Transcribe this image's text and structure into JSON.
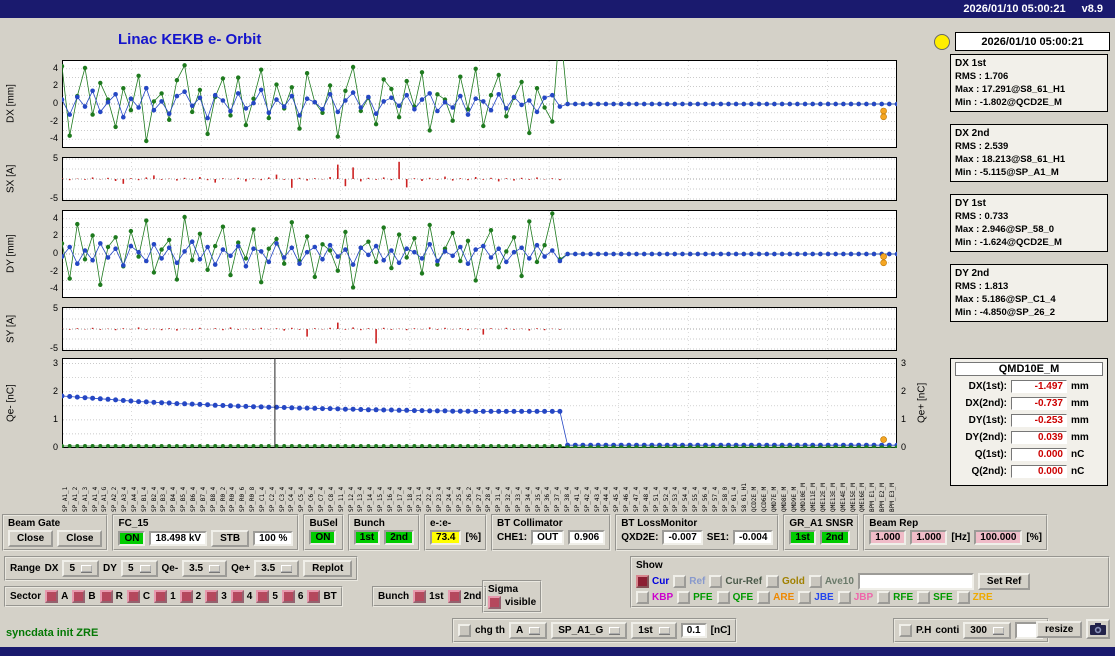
{
  "titlebar": {
    "datetime": "2026/01/10 05:00:21",
    "version": "v8.9"
  },
  "title": "Linac KEKB e- Orbit",
  "status_panel": {
    "timestamp": "2026/01/10 05:00:21",
    "stats": [
      {
        "name": "DX 1st",
        "lines": [
          "RMS : 1.706",
          "Max : 17.291@S8_61_H1",
          "Min : -1.802@QCD2E_M"
        ]
      },
      {
        "name": "DX 2nd",
        "lines": [
          "RMS : 2.539",
          "Max : 18.213@S8_61_H1",
          "Min : -5.115@SP_A1_M"
        ]
      },
      {
        "name": "DY 1st",
        "lines": [
          "RMS : 0.733",
          "Max : 2.946@SP_58_0",
          "Min : -1.624@QCD2E_M"
        ]
      },
      {
        "name": "DY 2nd",
        "lines": [
          "RMS : 1.813",
          "Max : 5.186@SP_C1_4",
          "Min : -4.850@SP_26_2"
        ]
      }
    ],
    "monitor": {
      "name": "QMD10E_M",
      "rows": [
        {
          "label": "DX(1st):",
          "value": "-1.497",
          "unit": "mm"
        },
        {
          "label": "DX(2nd):",
          "value": "-0.737",
          "unit": "mm"
        },
        {
          "label": "DY(1st):",
          "value": "-0.253",
          "unit": "mm"
        },
        {
          "label": "DY(2nd):",
          "value": "0.039",
          "unit": "mm"
        },
        {
          "label": "Q(1st):",
          "value": "0.000",
          "unit": "nC"
        },
        {
          "label": "Q(2nd):",
          "value": "0.000",
          "unit": "nC"
        }
      ]
    }
  },
  "chart_data": [
    {
      "id": "dx",
      "type": "scatter",
      "ylabel": "DX [mm]",
      "ylim": [
        -5,
        5
      ],
      "yticks": [
        4,
        2,
        0,
        -2,
        -4
      ],
      "ygrid": [
        4,
        3,
        2,
        1,
        0,
        -1,
        -2,
        -3,
        -4
      ],
      "series": [
        {
          "name": "DX 2nd",
          "color": "#1e7a1e",
          "r": 2.2,
          "values": [
            4.3,
            -3.6,
            0.9,
            4.1,
            -1.2,
            2.4,
            0.5,
            -2.6,
            1.8,
            -0.7,
            3.2,
            -4.2,
            0.3,
            1.2,
            -1.8,
            2.7,
            4.4,
            -0.9,
            1.6,
            -3.4,
            0.8,
            2.9,
            -1.3,
            3.0,
            -2.4,
            0.6,
            3.9,
            -1.6,
            2.2,
            -0.5,
            1.9,
            -2.8,
            3.5,
            0.2,
            -1.0,
            2.1,
            -3.7,
            1.5,
            4.2,
            -0.8,
            0.7,
            -2.3,
            2.8,
            1.7,
            -1.5,
            2.6,
            -0.3,
            3.6,
            -3.0,
            1.1,
            0.5,
            -1.9,
            3.1,
            -0.6,
            4.0,
            -2.5,
            1.0,
            3.3,
            -1.4,
            0.7,
            2.5,
            -3.3,
            1.8,
            -0.4,
            -2.0,
            9.0
          ],
          "runs": [
            [
              44,
              0
            ]
          ]
        },
        {
          "name": "DX 1st",
          "color": "#2547c4",
          "r": 2.3,
          "values": [
            0.5,
            -1.2,
            0.8,
            -0.3,
            1.5,
            -0.9,
            0.2,
            1.1,
            -1.5,
            0.6,
            -0.4,
            1.8,
            -0.7,
            0.3,
            -1.1,
            0.9,
            1.4,
            -0.2,
            0.7,
            -1.6,
            1.0,
            0.4,
            -0.8,
            1.2,
            -0.5,
            0.1,
            1.6,
            -1.0,
            0.5,
            -0.3,
            0.9,
            -1.3,
            0.6,
            0.2,
            -0.6,
            1.1,
            -0.9,
            0.4,
            1.3,
            -0.4,
            0.8,
            -1.1,
            0.3,
            0.7,
            -0.2,
            1.0,
            -0.6,
            0.5,
            1.2,
            -0.8,
            0.2,
            -0.4,
            0.9,
            -1.2,
            0.6,
            0.3,
            -0.7,
            1.1,
            -0.5,
            0.8,
            -0.1,
            0.4,
            -0.9,
            0.7,
            1.0,
            -0.3
          ],
          "runs": [
            [
              44,
              0
            ]
          ]
        }
      ],
      "highlights": [
        [
          0.984,
          -0.8
        ],
        [
          0.984,
          -1.45
        ]
      ],
      "highlight_color": "#f5a623"
    },
    {
      "id": "sx",
      "type": "bar",
      "ylabel": "SX [A]",
      "ylim": [
        -5.5,
        5.5
      ],
      "yticks": [
        5,
        -5
      ],
      "ygrid": [
        5,
        2.5,
        0,
        -2.5,
        -5
      ],
      "color": "#cc2222",
      "values": [
        0.2,
        -0.3,
        0.1,
        -0.2,
        0.4,
        -0.1,
        0.3,
        -0.5,
        -1.2,
        0.2,
        -0.3,
        0.4,
        0.9,
        -0.2,
        0.1,
        -0.4,
        0.3,
        -0.2,
        0.5,
        -0.3,
        -0.9,
        0.2,
        -0.1,
        0.3,
        -0.6,
        0.2,
        -0.3,
        0.4,
        1.1,
        -0.2,
        -2.2,
        0.3,
        -0.4,
        0.2,
        -0.1,
        0.5,
        3.6,
        -1.8,
        2.9,
        -0.6,
        0.3,
        -0.2,
        0.4,
        -0.3,
        4.3,
        -2.1,
        0.2,
        -0.5,
        0.3,
        -0.2,
        0.6,
        -0.4,
        0.2,
        -0.3,
        0.5,
        -0.2,
        0.3,
        -0.6,
        0.2,
        -0.4,
        0.3,
        -0.2,
        0.4,
        -0.1,
        0.2,
        -0.3
      ],
      "runs": [
        [
          44,
          0
        ]
      ]
    },
    {
      "id": "dy",
      "type": "scatter",
      "ylabel": "DY [mm]",
      "ylim": [
        -5,
        5
      ],
      "yticks": [
        4,
        2,
        0,
        -2,
        -4
      ],
      "ygrid": [
        4,
        3,
        2,
        1,
        0,
        -1,
        -2,
        -3,
        -4
      ],
      "series": [
        {
          "name": "DY 2nd",
          "color": "#1e7a1e",
          "r": 2.2,
          "values": [
            1.2,
            -2.8,
            3.4,
            -0.6,
            2.1,
            -3.5,
            0.8,
            1.9,
            -1.4,
            2.6,
            -0.3,
            3.8,
            -2.1,
            0.5,
            1.6,
            -2.9,
            4.2,
            -0.7,
            2.3,
            -1.8,
            0.9,
            3.1,
            -2.4,
            1.3,
            -0.5,
            2.8,
            -3.2,
            0.6,
            1.7,
            -1.1,
            3.6,
            -0.8,
            2.0,
            -2.6,
            1.1,
            0.4,
            -1.9,
            2.5,
            -3.8,
            0.7,
            1.4,
            -0.9,
            3.0,
            -1.6,
            2.2,
            -0.4,
            1.8,
            -2.2,
            3.3,
            -1.2,
            0.6,
            2.4,
            -0.8,
            1.5,
            -3.0,
            0.9,
            2.7,
            -1.5,
            0.3,
            1.9,
            -2.5,
            3.7,
            -0.9,
            1.0,
            4.6,
            -0.6
          ],
          "runs": [
            [
              44,
              0
            ]
          ]
        },
        {
          "name": "DY 1st",
          "color": "#2547c4",
          "r": 2.3,
          "values": [
            -0.3,
            0.8,
            -1.1,
            0.4,
            -0.7,
            1.2,
            -0.4,
            0.6,
            -1.3,
            0.9,
            0.2,
            -0.8,
            1.1,
            -0.5,
            0.7,
            -1.0,
            0.3,
            1.4,
            -0.6,
            0.8,
            -1.2,
            0.5,
            -0.2,
            0.9,
            -1.4,
            0.6,
            0.3,
            -0.9,
            1.2,
            -0.4,
            0.7,
            -1.1,
            0.2,
            0.8,
            -0.6,
            1.0,
            -0.3,
            0.5,
            -1.2,
            0.7,
            -0.1,
            0.9,
            -0.7,
            0.4,
            -1.0,
            0.6,
            0.2,
            -0.5,
            1.1,
            -0.8,
            0.3,
            -0.2,
            0.8,
            -1.1,
            0.5,
            0.9,
            -0.4,
            0.6,
            -0.9,
            0.2,
            0.7,
            -0.5,
            1.0,
            -0.3,
            0.4,
            -0.8
          ],
          "runs": [
            [
              44,
              0
            ]
          ]
        }
      ],
      "highlights": [
        [
          0.984,
          -0.3
        ],
        [
          0.984,
          -1.0
        ]
      ],
      "highlight_color": "#f5a623"
    },
    {
      "id": "sy",
      "type": "bar",
      "ylabel": "SY [A]",
      "ylim": [
        -5.5,
        5.5
      ],
      "yticks": [
        5,
        -5
      ],
      "ygrid": [
        5,
        2.5,
        0,
        -2.5,
        -5
      ],
      "color": "#cc2222",
      "values": [
        0.1,
        -0.2,
        0.2,
        -0.1,
        0.3,
        -0.2,
        0.1,
        -0.3,
        0.2,
        -0.1,
        0.4,
        -0.2,
        0.1,
        -0.3,
        0.2,
        -0.4,
        0.1,
        -0.2,
        0.3,
        -0.1,
        0.2,
        -0.3,
        0.4,
        -0.2,
        0.1,
        -0.2,
        0.3,
        -0.1,
        0.2,
        -0.4,
        0.3,
        -0.2,
        -1.9,
        0.2,
        -0.1,
        0.3,
        1.6,
        -0.2,
        0.4,
        -0.3,
        0.2,
        -3.6,
        0.3,
        -0.2,
        0.1,
        -0.3,
        0.2,
        -0.1,
        0.4,
        -0.2,
        0.3,
        -0.1,
        0.2,
        -0.3,
        0.1,
        -1.4,
        0.2,
        -0.1,
        0.3,
        -0.2,
        0.1,
        -0.4,
        0.2,
        -0.3,
        0.1,
        -0.2
      ],
      "runs": [
        [
          44,
          0
        ]
      ]
    },
    {
      "id": "q",
      "type": "scatter",
      "ylabel": "Qe- [nC]",
      "ylabel_right": "Qe+ [nC]",
      "ylim": [
        0,
        3.2
      ],
      "yticks": [
        3,
        2,
        1,
        0
      ],
      "yticks_right": [
        3,
        2,
        1,
        0
      ],
      "ygrid": [
        3,
        2.5,
        2,
        1.5,
        1,
        0.5
      ],
      "vline": 0.255,
      "series": [
        {
          "name": "Qe- 1st",
          "color": "#2547c4",
          "r": 2.5,
          "values": [
            1.85,
            1.83,
            1.81,
            1.79,
            1.77,
            1.75,
            1.73,
            1.71,
            1.69,
            1.67,
            1.65,
            1.64,
            1.62,
            1.61,
            1.6,
            1.58,
            1.57,
            1.56,
            1.55,
            1.54,
            1.52,
            1.51,
            1.5,
            1.49,
            1.48,
            1.47,
            1.46,
            1.45,
            1.45,
            1.44,
            1.43,
            1.42,
            1.42,
            1.41,
            1.4,
            1.4,
            1.39,
            1.38,
            1.38,
            1.37,
            1.36,
            1.36,
            1.35,
            1.35,
            1.34,
            1.34,
            1.33,
            1.33,
            1.32,
            1.32,
            1.32,
            1.31,
            1.31,
            1.31,
            1.3,
            1.3,
            1.3,
            1.3,
            1.3,
            1.3,
            1.3,
            1.3,
            1.3,
            1.3,
            1.3,
            1.3
          ],
          "runs": [
            [
              44,
              0.1
            ]
          ]
        },
        {
          "name": "Qe- 2nd",
          "color": "#1e7a1e",
          "r": 2.0,
          "values": [],
          "runs": [
            [
              66,
              0.07
            ],
            [
              44,
              0.03
            ]
          ]
        }
      ],
      "highlights": [
        [
          0.984,
          0.3
        ]
      ],
      "highlight_color": "#f5a623"
    }
  ],
  "xlabels": [
    "SP_A1_1",
    "SP_A1_2",
    "SP_A1_3",
    "SP_A1_4",
    "SP_A1_G",
    "SP_A2_2",
    "SP_A3_4",
    "SP_A4_4",
    "SP_B1_4",
    "SP_B2_4",
    "SP_B3_4",
    "SP_B4_4",
    "SP_B5_4",
    "SP_B6_4",
    "SP_B7_4",
    "SP_B8_4",
    "SP_R0_2",
    "SP_R0_4",
    "SP_R0_6",
    "SP_R0_8",
    "SP_C1_4",
    "SP_C2_4",
    "SP_C3_4",
    "SP_C4_4",
    "SP_C5_4",
    "SP_C6_4",
    "SP_C7_4",
    "SP_C8_4",
    "SP_11_4",
    "SP_12_4",
    "SP_13_4",
    "SP_14_4",
    "SP_15_4",
    "SP_16_4",
    "SP_17_4",
    "SP_18_4",
    "SP_21_4",
    "SP_22_4",
    "SP_23_4",
    "SP_24_4",
    "SP_25_4",
    "SP_26_2",
    "SP_27_4",
    "SP_28_4",
    "SP_31_4",
    "SP_32_4",
    "SP_33_4",
    "SP_34_4",
    "SP_35_4",
    "SP_36_4",
    "SP_37_4",
    "SP_38_4",
    "SP_41_4",
    "SP_42_4",
    "SP_43_4",
    "SP_44_4",
    "SP_45_4",
    "SP_46_4",
    "SP_47_4",
    "SP_48_4",
    "SP_51_4",
    "SP_52_4",
    "SP_53_4",
    "SP_54_4",
    "SP_55_4",
    "SP_56_4",
    "SP_57_4",
    "SP_58_0",
    "SP_61_4",
    "S8_61_H1",
    "QCD2E_M",
    "QCD6E_M",
    "QMD7E_M",
    "QMD8E_M",
    "QMD9E_M",
    "QMD10E_M",
    "QME11E_M",
    "QME12E_M",
    "QME13E_M",
    "QME14E_M",
    "QME15E_M",
    "QME16E_M",
    "BPM_E1_M",
    "BPM_E2_M",
    "BPM_E3_M"
  ],
  "controls": {
    "row1": {
      "beam_gate": {
        "title": "Beam Gate",
        "buttons": [
          "Close",
          "Close"
        ]
      },
      "fc15": {
        "title": "FC_15",
        "state": "ON",
        "kv": "18.498 kV",
        "stb": "STB",
        "pct": "100 %"
      },
      "busel": {
        "title": "BuSel",
        "state": "ON"
      },
      "bunch": {
        "title": "Bunch",
        "b1": "1st",
        "b2": "2nd"
      },
      "ee": {
        "title": "e-:e-",
        "value": "73.4",
        "unit": "[%]"
      },
      "bt_collimator": {
        "title": "BT Collimator",
        "che1_label": "CHE1:",
        "che1": "OUT",
        "value": "0.906"
      },
      "bt_lossmonitor": {
        "title": "BT LossMonitor",
        "qxd2e_label": "QXD2E:",
        "qxd2e": "-0.007",
        "se1_label": "SE1:",
        "se1": "-0.004"
      },
      "gr_a1": {
        "title": "GR_A1 SNSR",
        "b1": "1st",
        "b2": "2nd"
      },
      "beam_rep": {
        "title": "Beam Rep",
        "v1": "1.000",
        "v2": "1.000",
        "hz": "[Hz]",
        "v3": "100.000",
        "pct": "[%]"
      }
    },
    "range": {
      "title": "Range",
      "items": [
        {
          "label": "DX",
          "value": "5"
        },
        {
          "label": "DY",
          "value": "5"
        },
        {
          "label": "Qe-",
          "value": "3.5"
        },
        {
          "label": "Qe+",
          "value": "3.5"
        }
      ],
      "replot": "Replot"
    },
    "sector": {
      "title": "Sector",
      "items": [
        "A",
        "B",
        "R",
        "C",
        "1",
        "2",
        "3",
        "4",
        "5",
        "6",
        "BT"
      ]
    },
    "bunch_sel": {
      "title": "Bunch",
      "items": [
        "1st",
        "2nd"
      ]
    },
    "sigma": {
      "title": "Sigma",
      "item": "visible"
    },
    "show": {
      "title": "Show",
      "row1": [
        {
          "label": "Cur",
          "color": "#0000dd",
          "checked": true
        },
        {
          "label": "Ref",
          "color": "#8899cc"
        },
        {
          "label": "Cur-Ref",
          "color": "#4a5a4a"
        },
        {
          "label": "Gold",
          "color": "#a08000"
        },
        {
          "label": "Ave10",
          "color": "#6a7a6a"
        }
      ],
      "set_ref": "Set Ref",
      "row2": [
        {
          "label": "KBP",
          "color": "#cc00cc"
        },
        {
          "label": "PFE",
          "color": "#009900"
        },
        {
          "label": "QFE",
          "color": "#009900"
        },
        {
          "label": "ARE",
          "color": "#ee8800"
        },
        {
          "label": "JBE",
          "color": "#2244ee"
        },
        {
          "label": "JBP",
          "color": "#ee66aa"
        },
        {
          "label": "RFE",
          "color": "#009900"
        },
        {
          "label": "SFE",
          "color": "#009900"
        },
        {
          "label": "ZRE",
          "color": "#eeaa00"
        }
      ]
    },
    "statusline": "syncdata init ZRE",
    "row4": {
      "chg_th": "chg th",
      "dd1": "A",
      "dd2": "SP_A1_G",
      "dd3": "1st",
      "thr": "0.1",
      "thr_unit": "[nC]",
      "ph": "P.H",
      "conti": "conti",
      "num": "300",
      "resize": "resize"
    }
  }
}
